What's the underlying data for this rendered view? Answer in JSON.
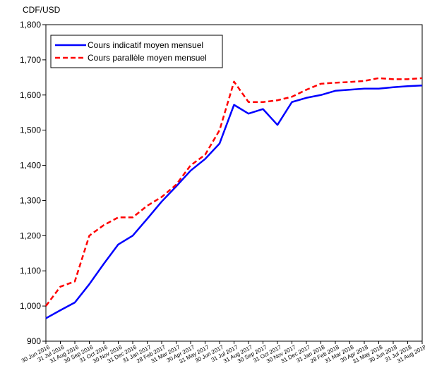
{
  "chart_data": {
    "type": "line",
    "y_axis_label": "CDF/USD",
    "categories": [
      "30 Jun 2016",
      "31 Jul 2016",
      "31 Aug 2016",
      "30 Sep 2016",
      "31 Oct 2016",
      "30 Nov 2016",
      "31 Dec 2016",
      "31 Jan 2017",
      "28 Feb 2017",
      "31 Mar 2017",
      "30 Apr 2017",
      "31 May 2017",
      "30 Jun 2017",
      "31 Jul 2017",
      "31 Aug 2017",
      "30 Sep 2017",
      "31 Oct 2017",
      "30 Nov 2017",
      "31 Dec 2017",
      "31 Jan 2018",
      "28 Feb 2018",
      "31 Mar 2018",
      "30 Apr 2018",
      "31 May 2018",
      "30 Jun 2018",
      "31 Jul 2018",
      "31 Aug 2018"
    ],
    "series": [
      {
        "name": "Cours indicatif moyen mensuel",
        "color": "#0000ff",
        "dash": false,
        "values": [
          965,
          988,
          1010,
          1062,
          1120,
          1175,
          1200,
          1248,
          1297,
          1340,
          1385,
          1418,
          1462,
          1572,
          1547,
          1560,
          1515,
          1580,
          1592,
          1600,
          1612,
          1615,
          1618,
          1618,
          1622,
          1625,
          1627
        ]
      },
      {
        "name": "Cours parallèle moyen mensuel",
        "color": "#ff0000",
        "dash": true,
        "values": [
          1000,
          1055,
          1070,
          1200,
          1230,
          1252,
          1252,
          1285,
          1310,
          1345,
          1400,
          1430,
          1500,
          1638,
          1580,
          1580,
          1585,
          1595,
          1615,
          1632,
          1635,
          1637,
          1640,
          1648,
          1645,
          1645,
          1648
        ]
      }
    ],
    "ylim": [
      900,
      1800
    ],
    "yticks": [
      {
        "value": 900,
        "label": "900"
      },
      {
        "value": 1000,
        "label": "1,000"
      },
      {
        "value": 1100,
        "label": "1,100"
      },
      {
        "value": 1200,
        "label": "1,200"
      },
      {
        "value": 1300,
        "label": "1,300"
      },
      {
        "value": 1400,
        "label": "1,400"
      },
      {
        "value": 1500,
        "label": "1,500"
      },
      {
        "value": 1600,
        "label": "1,600"
      },
      {
        "value": 1700,
        "label": "1,700"
      },
      {
        "value": 1800,
        "label": "1,800"
      }
    ],
    "grid": false,
    "legend": "top-left"
  }
}
